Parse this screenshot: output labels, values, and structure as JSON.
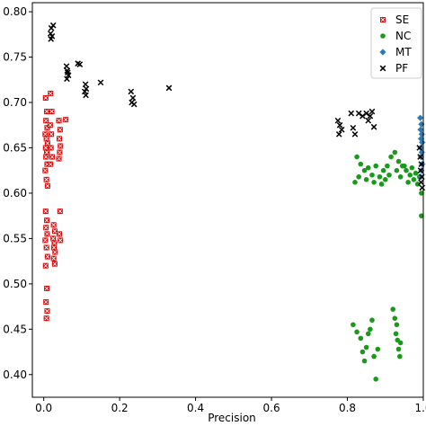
{
  "chart_data": {
    "type": "scatter",
    "title": "",
    "xlabel": "Precision",
    "ylabel": "",
    "xlim": [
      -0.03,
      1.0
    ],
    "ylim": [
      0.375,
      0.81
    ],
    "xticks": [
      0.0,
      0.2,
      0.4,
      0.6,
      0.8,
      1.0
    ],
    "xtick_labels": [
      "0.0",
      "0.2",
      "0.4",
      "0.6",
      "0.8",
      "1.0"
    ],
    "yticks": [
      0.4,
      0.45,
      0.5,
      0.55,
      0.6,
      0.65,
      0.7,
      0.75,
      0.8
    ],
    "ytick_labels": [
      "0.40",
      "0.45",
      "0.50",
      "0.55",
      "0.60",
      "0.65",
      "0.70",
      "0.75",
      "0.80"
    ],
    "grid": false,
    "legend_position": "top-right",
    "series": [
      {
        "name": "SE",
        "marker": "square-x",
        "color": "#e00000",
        "points": [
          [
            0.005,
            0.705
          ],
          [
            0.008,
            0.69
          ],
          [
            0.006,
            0.68
          ],
          [
            0.009,
            0.672
          ],
          [
            0.004,
            0.665
          ],
          [
            0.007,
            0.66
          ],
          [
            0.01,
            0.655
          ],
          [
            0.005,
            0.65
          ],
          [
            0.008,
            0.645
          ],
          [
            0.006,
            0.64
          ],
          [
            0.009,
            0.632
          ],
          [
            0.004,
            0.625
          ],
          [
            0.007,
            0.615
          ],
          [
            0.01,
            0.608
          ],
          [
            0.005,
            0.58
          ],
          [
            0.008,
            0.57
          ],
          [
            0.006,
            0.562
          ],
          [
            0.009,
            0.555
          ],
          [
            0.004,
            0.548
          ],
          [
            0.007,
            0.54
          ],
          [
            0.01,
            0.53
          ],
          [
            0.005,
            0.52
          ],
          [
            0.008,
            0.495
          ],
          [
            0.006,
            0.48
          ],
          [
            0.009,
            0.47
          ],
          [
            0.007,
            0.462
          ],
          [
            0.018,
            0.71
          ],
          [
            0.021,
            0.69
          ],
          [
            0.017,
            0.675
          ],
          [
            0.02,
            0.665
          ],
          [
            0.019,
            0.65
          ],
          [
            0.022,
            0.64
          ],
          [
            0.018,
            0.632
          ],
          [
            0.026,
            0.565
          ],
          [
            0.029,
            0.558
          ],
          [
            0.025,
            0.55
          ],
          [
            0.028,
            0.545
          ],
          [
            0.027,
            0.54
          ],
          [
            0.03,
            0.535
          ],
          [
            0.026,
            0.528
          ],
          [
            0.029,
            0.522
          ],
          [
            0.04,
            0.68
          ],
          [
            0.043,
            0.67
          ],
          [
            0.041,
            0.66
          ],
          [
            0.044,
            0.652
          ],
          [
            0.042,
            0.645
          ],
          [
            0.04,
            0.638
          ],
          [
            0.043,
            0.58
          ],
          [
            0.041,
            0.555
          ],
          [
            0.044,
            0.548
          ],
          [
            0.058,
            0.681
          ]
        ]
      },
      {
        "name": "NC",
        "marker": "circle",
        "color": "#1a9a1a",
        "points": [
          [
            0.825,
            0.64
          ],
          [
            0.835,
            0.632
          ],
          [
            0.845,
            0.625
          ],
          [
            0.855,
            0.628
          ],
          [
            0.865,
            0.62
          ],
          [
            0.875,
            0.63
          ],
          [
            0.885,
            0.618
          ],
          [
            0.895,
            0.625
          ],
          [
            0.905,
            0.63
          ],
          [
            0.915,
            0.64
          ],
          [
            0.925,
            0.645
          ],
          [
            0.935,
            0.635
          ],
          [
            0.945,
            0.63
          ],
          [
            0.955,
            0.625
          ],
          [
            0.965,
            0.62
          ],
          [
            0.975,
            0.615
          ],
          [
            0.985,
            0.61
          ],
          [
            0.995,
            0.6
          ],
          [
            0.82,
            0.612
          ],
          [
            0.83,
            0.618
          ],
          [
            0.85,
            0.615
          ],
          [
            0.87,
            0.612
          ],
          [
            0.89,
            0.61
          ],
          [
            0.91,
            0.62
          ],
          [
            0.93,
            0.625
          ],
          [
            0.95,
            0.63
          ],
          [
            0.97,
            0.628
          ],
          [
            0.98,
            0.622
          ],
          [
            0.99,
            0.618
          ],
          [
            0.96,
            0.612
          ],
          [
            0.94,
            0.618
          ],
          [
            0.9,
            0.615
          ],
          [
            0.995,
            0.575
          ],
          [
            0.815,
            0.455
          ],
          [
            0.825,
            0.447
          ],
          [
            0.835,
            0.44
          ],
          [
            0.84,
            0.425
          ],
          [
            0.845,
            0.415
          ],
          [
            0.85,
            0.43
          ],
          [
            0.855,
            0.445
          ],
          [
            0.86,
            0.45
          ],
          [
            0.865,
            0.46
          ],
          [
            0.87,
            0.42
          ],
          [
            0.875,
            0.395
          ],
          [
            0.88,
            0.428
          ],
          [
            0.92,
            0.472
          ],
          [
            0.925,
            0.462
          ],
          [
            0.93,
            0.455
          ],
          [
            0.928,
            0.445
          ],
          [
            0.932,
            0.438
          ],
          [
            0.935,
            0.428
          ],
          [
            0.938,
            0.42
          ],
          [
            0.94,
            0.435
          ]
        ]
      },
      {
        "name": "MT",
        "marker": "diamond",
        "color": "#2b7bba",
        "points": [
          [
            0.992,
            0.683
          ],
          [
            0.995,
            0.676
          ],
          [
            0.993,
            0.67
          ],
          [
            0.996,
            0.665
          ],
          [
            0.994,
            0.66
          ],
          [
            0.997,
            0.656
          ],
          [
            0.993,
            0.65
          ],
          [
            0.996,
            0.645
          ],
          [
            0.994,
            0.64
          ],
          [
            0.997,
            0.632
          ],
          [
            0.995,
            0.625
          ],
          [
            0.993,
            0.618
          ]
        ]
      },
      {
        "name": "PF",
        "marker": "x",
        "color": "#000000",
        "points": [
          [
            0.02,
            0.782
          ],
          [
            0.025,
            0.785
          ],
          [
            0.018,
            0.776
          ],
          [
            0.022,
            0.773
          ],
          [
            0.019,
            0.77
          ],
          [
            0.06,
            0.74
          ],
          [
            0.062,
            0.735
          ],
          [
            0.065,
            0.73
          ],
          [
            0.061,
            0.726
          ],
          [
            0.063,
            0.733
          ],
          [
            0.09,
            0.743
          ],
          [
            0.095,
            0.742
          ],
          [
            0.11,
            0.72
          ],
          [
            0.112,
            0.715
          ],
          [
            0.108,
            0.712
          ],
          [
            0.111,
            0.708
          ],
          [
            0.15,
            0.722
          ],
          [
            0.23,
            0.712
          ],
          [
            0.235,
            0.705
          ],
          [
            0.232,
            0.7
          ],
          [
            0.238,
            0.698
          ],
          [
            0.33,
            0.716
          ],
          [
            0.775,
            0.68
          ],
          [
            0.78,
            0.675
          ],
          [
            0.785,
            0.67
          ],
          [
            0.778,
            0.665
          ],
          [
            0.81,
            0.688
          ],
          [
            0.815,
            0.672
          ],
          [
            0.82,
            0.665
          ],
          [
            0.83,
            0.688
          ],
          [
            0.84,
            0.685
          ],
          [
            0.85,
            0.688
          ],
          [
            0.855,
            0.68
          ],
          [
            0.86,
            0.685
          ],
          [
            0.865,
            0.69
          ],
          [
            0.87,
            0.673
          ],
          [
            0.99,
            0.65
          ],
          [
            0.992,
            0.64
          ],
          [
            0.995,
            0.632
          ],
          [
            0.993,
            0.625
          ],
          [
            0.996,
            0.618
          ],
          [
            0.994,
            0.612
          ],
          [
            0.997,
            0.606
          ]
        ]
      }
    ]
  }
}
